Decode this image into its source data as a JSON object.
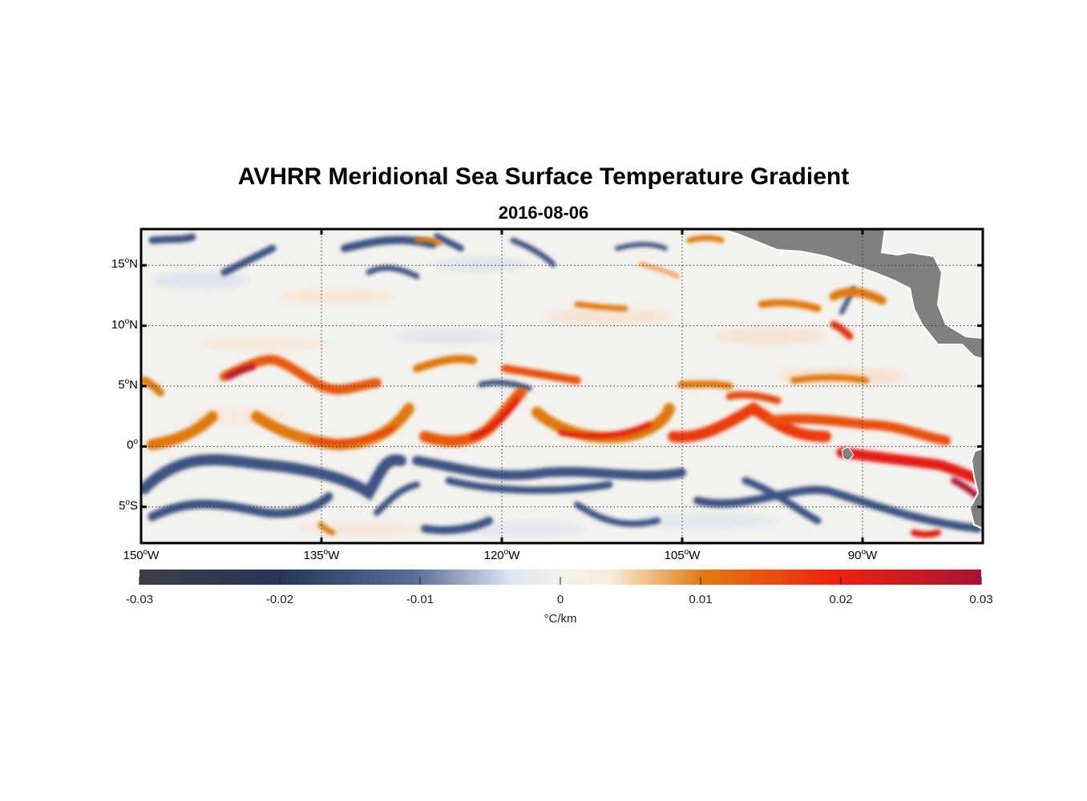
{
  "title": "AVHRR Meridional Sea Surface Temperature Gradient",
  "subtitle": "2016-08-06",
  "map": {
    "lon_range": [
      -150,
      -80
    ],
    "lat_range": [
      -8,
      18
    ],
    "lat_ticks": [
      {
        "value": 15,
        "label": "15",
        "hemi": "N"
      },
      {
        "value": 10,
        "label": "10",
        "hemi": "N"
      },
      {
        "value": 5,
        "label": "5",
        "hemi": "N"
      },
      {
        "value": 0,
        "label": "0",
        "hemi": ""
      },
      {
        "value": -5,
        "label": "5",
        "hemi": "S"
      }
    ],
    "lon_ticks": [
      {
        "value": -150,
        "label": "150",
        "hemi": "W"
      },
      {
        "value": -135,
        "label": "135",
        "hemi": "W"
      },
      {
        "value": -120,
        "label": "120",
        "hemi": "W"
      },
      {
        "value": -105,
        "label": "105",
        "hemi": "W"
      },
      {
        "value": -90,
        "label": "90",
        "hemi": "W"
      }
    ],
    "land_color": "#808080",
    "grid": "dotted"
  },
  "colorbar": {
    "min": -0.03,
    "max": 0.03,
    "ticks": [
      "-0.03",
      "-0.02",
      "-0.01",
      "0",
      "0.01",
      "0.02",
      "0.03"
    ],
    "unit": "°C/km",
    "colors": [
      "#3a3d45",
      "#27375a",
      "#5b6f99",
      "#dbe6f2",
      "#f8eed8",
      "#e07a10",
      "#f02010",
      "#a51535"
    ]
  }
}
